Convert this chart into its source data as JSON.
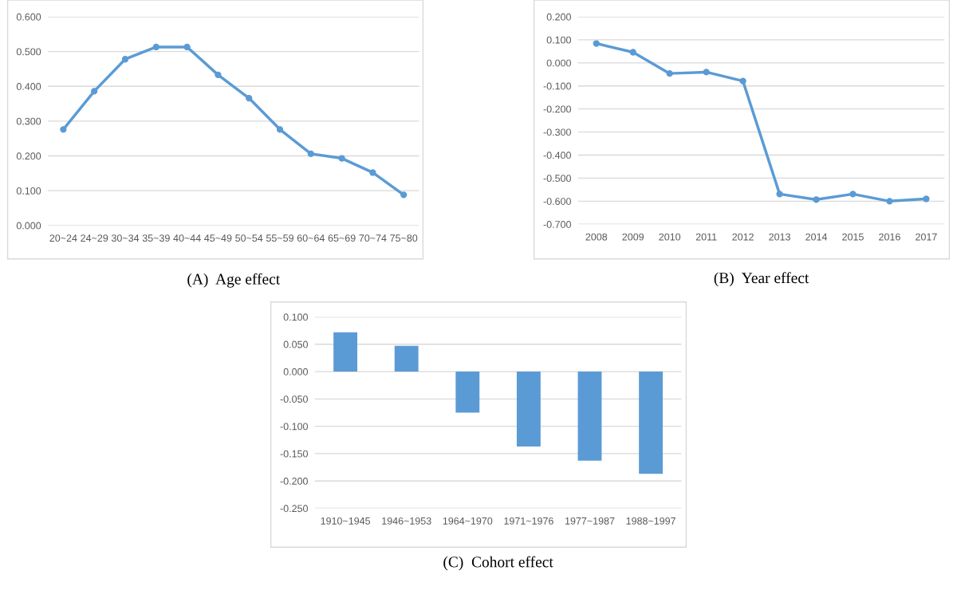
{
  "chart_data": [
    {
      "type": "line",
      "categories": [
        "20~24",
        "24~29",
        "30~34",
        "35~39",
        "40~44",
        "45~49",
        "50~54",
        "55~59",
        "60~64",
        "65~69",
        "70~74",
        "75~80"
      ],
      "values": [
        0.276,
        0.386,
        0.478,
        0.513,
        0.513,
        0.433,
        0.366,
        0.276,
        0.206,
        0.193,
        0.152,
        0.088
      ],
      "color": "#5b9bd5",
      "ylim": [
        0,
        0.6
      ],
      "yticks": [
        {
          "value": 0,
          "label": "0.000"
        },
        {
          "value": 0.1,
          "label": "0.100"
        },
        {
          "value": 0.2,
          "label": "0.200"
        },
        {
          "value": 0.3,
          "label": "0.300"
        },
        {
          "value": 0.4,
          "label": "0.400"
        },
        {
          "value": 0.5,
          "label": "0.500"
        },
        {
          "value": 0.6,
          "label": "0.600"
        }
      ],
      "grid": "y",
      "marker": "circle",
      "line_style": "solid",
      "annotations": [
        "(A)  Age effect"
      ]
    },
    {
      "type": "line",
      "categories": [
        "2008",
        "2009",
        "2010",
        "2011",
        "2012",
        "2013",
        "2014",
        "2015",
        "2016",
        "2017"
      ],
      "values": [
        0.084,
        0.046,
        -0.046,
        -0.04,
        -0.079,
        -0.569,
        -0.593,
        -0.569,
        -0.6,
        -0.59
      ],
      "color": "#5b9bd5",
      "ylim": [
        -0.7,
        0.2
      ],
      "yticks": [
        {
          "value": -0.7,
          "label": "-0.700"
        },
        {
          "value": -0.6,
          "label": "-0.600"
        },
        {
          "value": -0.5,
          "label": "-0.500"
        },
        {
          "value": -0.4,
          "label": "-0.400"
        },
        {
          "value": -0.3,
          "label": "-0.300"
        },
        {
          "value": -0.2,
          "label": "-0.200"
        },
        {
          "value": -0.1,
          "label": "-0.100"
        },
        {
          "value": 0,
          "label": "0.000"
        },
        {
          "value": 0.1,
          "label": "0.100"
        },
        {
          "value": 0.2,
          "label": "0.200"
        }
      ],
      "grid": "y",
      "marker": "circle",
      "line_style": "solid",
      "annotations": [
        "(B)  Year effect"
      ]
    },
    {
      "type": "bar",
      "categories": [
        "1910~1945",
        "1946~1953",
        "1964~1970",
        "1971~1976",
        "1977~1987",
        "1988~1997"
      ],
      "values": [
        0.072,
        0.047,
        -0.075,
        -0.137,
        -0.163,
        -0.187
      ],
      "color": "#5b9bd5",
      "ylim": [
        -0.25,
        0.1
      ],
      "yticks": [
        {
          "value": -0.25,
          "label": "-0.250"
        },
        {
          "value": -0.2,
          "label": "-0.200"
        },
        {
          "value": -0.15,
          "label": "-0.150"
        },
        {
          "value": -0.1,
          "label": "-0.100"
        },
        {
          "value": -0.05,
          "label": "-0.050"
        },
        {
          "value": 0,
          "label": "0.000"
        },
        {
          "value": 0.05,
          "label": "0.050"
        },
        {
          "value": 0.1,
          "label": "0.100"
        }
      ],
      "grid": "y",
      "annotations": [
        "(C)  Cohort effect"
      ]
    }
  ]
}
